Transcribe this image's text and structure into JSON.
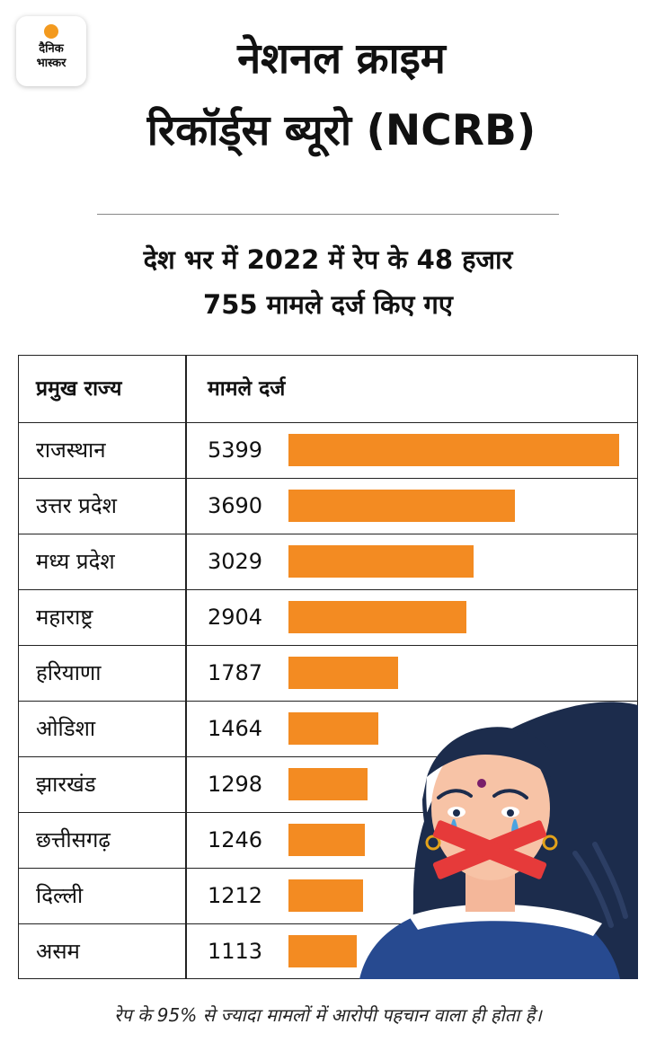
{
  "logo": {
    "line1": "दैनिक",
    "line2": "भास्कर"
  },
  "title": {
    "line1": "नेशनल क्राइम",
    "line2": "रिकॉर्ड्स ब्यूरो (NCRB)"
  },
  "subtitle": {
    "line1": "देश भर में 2022 में रेप के 48 हजार",
    "line2": "755 मामले दर्ज किए गए"
  },
  "table": {
    "header_state": "प्रमुख राज्य",
    "header_cases": "मामले दर्ज"
  },
  "chart_data": {
    "type": "bar",
    "orientation": "horizontal",
    "bar_color": "#f38b22",
    "categories": [
      "राजस्थान",
      "उत्तर प्रदेश",
      "मध्य प्रदेश",
      "महाराष्ट्र",
      "हरियाणा",
      "ओडिशा",
      "झारखंड",
      "छत्तीसगढ़",
      "दिल्ली",
      "असम"
    ],
    "values": [
      5399,
      3690,
      3029,
      2904,
      1787,
      1464,
      1298,
      1246,
      1212,
      1113
    ],
    "xlim": [
      0,
      5399
    ]
  },
  "footnote": "रेप के 95% से ज्यादा मामलों में आरोपी पहचान वाला ही होता है।",
  "colors": {
    "accent": "#f38b22",
    "hair": "#1c2c4c",
    "background": "#ffffff"
  }
}
